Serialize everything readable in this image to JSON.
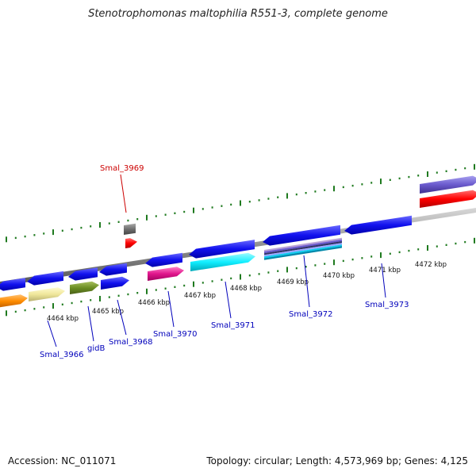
{
  "title": "Stenotrophomonas maltophilia R551-3, complete genome",
  "accession": "Accession: NC_011071",
  "topology": "Topology: circular; Length: 4,573,969 bp; Genes: 4,125",
  "colors": {
    "backbone": "#8c8c8c",
    "tick": "#1f7a1f",
    "label_blue": "#0000bb",
    "label_red": "#cc0000"
  },
  "kbp_ticks": [
    "4464 kbp",
    "4465 kbp",
    "4466 kbp",
    "4467 kbp",
    "4468 kbp",
    "4469 kbp",
    "4470 kbp",
    "4471 kbp",
    "4472 kbp"
  ],
  "gene_labels": [
    {
      "text": "Smal_3966",
      "color": "#0000bb"
    },
    {
      "text": "gidB",
      "color": "#0000bb"
    },
    {
      "text": "Smal_3968",
      "color": "#0000bb"
    },
    {
      "text": "Smal_3970",
      "color": "#0000bb"
    },
    {
      "text": "Smal_3971",
      "color": "#0000bb"
    },
    {
      "text": "Smal_3972",
      "color": "#0000bb"
    },
    {
      "text": "Smal_3973",
      "color": "#0000bb"
    },
    {
      "text": "Smal_3969",
      "color": "#cc0000"
    }
  ]
}
